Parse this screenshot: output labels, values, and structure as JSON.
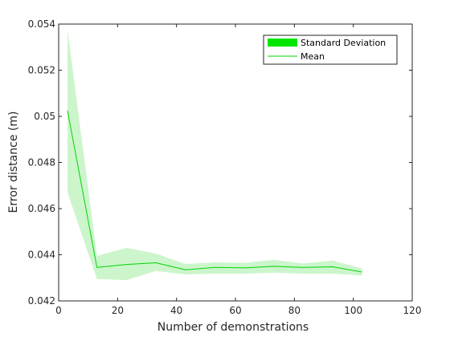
{
  "chart_data": {
    "type": "line",
    "xlabel": "Number of demonstrations",
    "ylabel": "Error distance (m)",
    "xlim": [
      0,
      120
    ],
    "ylim": [
      0.042,
      0.054
    ],
    "xticks": [
      "0",
      "20",
      "40",
      "60",
      "80",
      "100",
      "120"
    ],
    "yticks": [
      "0.042",
      "0.044",
      "0.046",
      "0.048",
      "0.05",
      "0.052",
      "0.054"
    ],
    "grid": false,
    "legend_position": "top-right",
    "colors": {
      "band": "#ccf5cc",
      "mean": "#00d400",
      "legend_band": "#00e600",
      "axis": "#262626"
    },
    "x": [
      3,
      13,
      23,
      33,
      43,
      53,
      63,
      73,
      83,
      93,
      103
    ],
    "series": [
      {
        "name": "Mean",
        "values": [
          0.05025,
          0.04345,
          0.04358,
          0.04365,
          0.04335,
          0.04345,
          0.04343,
          0.0435,
          0.04345,
          0.04348,
          0.04325
        ]
      },
      {
        "name": "Standard Deviation",
        "upper": [
          0.05375,
          0.04395,
          0.0443,
          0.04405,
          0.0436,
          0.04367,
          0.04365,
          0.04378,
          0.04362,
          0.04375,
          0.0434
        ],
        "lower": [
          0.0467,
          0.04295,
          0.0429,
          0.0433,
          0.04315,
          0.04318,
          0.04318,
          0.04322,
          0.04318,
          0.04318,
          0.0431
        ]
      }
    ],
    "legend": [
      "Standard Deviation",
      "Mean"
    ]
  }
}
